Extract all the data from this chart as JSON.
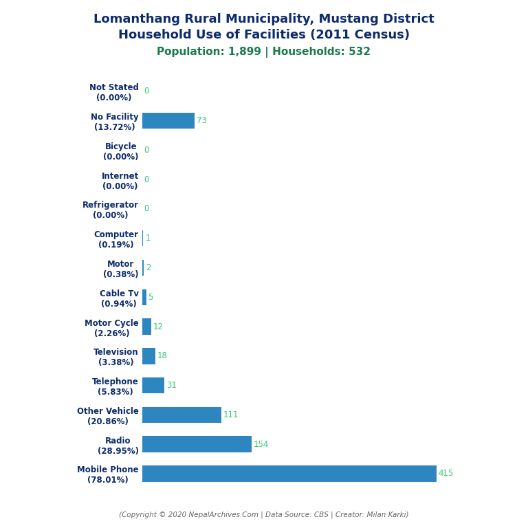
{
  "title_line1": "Lomanthang Rural Municipality, Mustang District",
  "title_line2": "Household Use of Facilities (2011 Census)",
  "subtitle": "Population: 1,899 | Households: 532",
  "footer": "(Copyright © 2020 NepalArchives.Com | Data Source: CBS | Creator: Milan Karki)",
  "categories": [
    "Not Stated\n(0.00%)",
    "No Facility\n(13.72%)",
    "Bicycle\n(0.00%)",
    "Internet\n(0.00%)",
    "Refrigerator\n(0.00%)",
    "Computer\n(0.19%)",
    "Motor\n(0.38%)",
    "Cable Tv\n(0.94%)",
    "Motor Cycle\n(2.26%)",
    "Television\n(3.38%)",
    "Telephone\n(5.83%)",
    "Other Vehicle\n(20.86%)",
    "Radio\n(28.95%)",
    "Mobile Phone\n(78.01%)"
  ],
  "values": [
    0,
    73,
    0,
    0,
    0,
    1,
    2,
    5,
    12,
    18,
    31,
    111,
    154,
    415
  ],
  "bar_color": "#2e86c1",
  "title_color": "#0d2b6b",
  "subtitle_color": "#1a7a4a",
  "value_color": "#2ecc71",
  "footer_color": "#666666",
  "background_color": "#ffffff",
  "title_fontsize": 13,
  "subtitle_fontsize": 11,
  "label_fontsize": 8.5,
  "value_fontsize": 8.5,
  "footer_fontsize": 7.5
}
